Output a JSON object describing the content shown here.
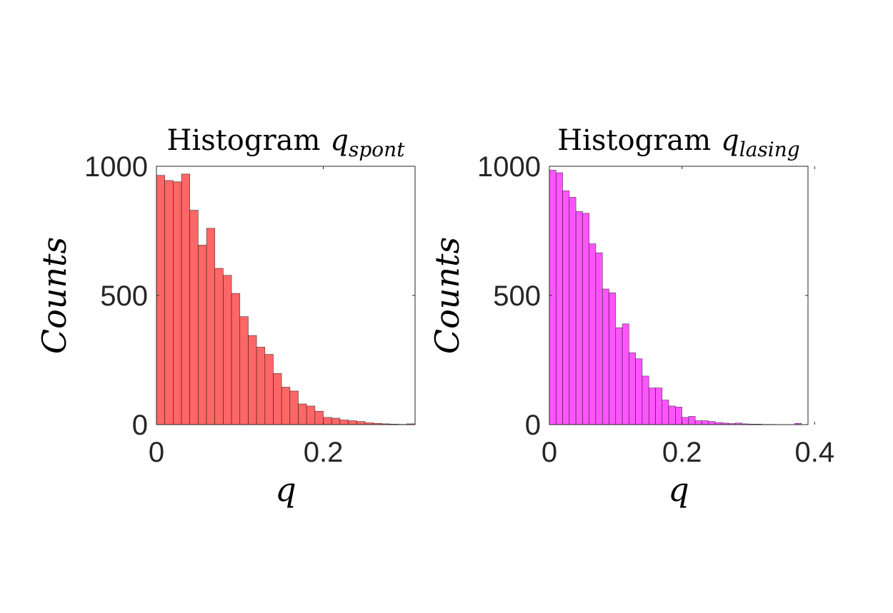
{
  "chart_data": [
    {
      "type": "bar",
      "title": "Histogram",
      "title_var": "q",
      "title_sub": "spont",
      "xlabel": "q",
      "ylabel": "Counts",
      "xlim": [
        0,
        0.31
      ],
      "ylim": [
        0,
        1000
      ],
      "xticks": [
        0,
        0.2
      ],
      "xtick_labels": [
        "0",
        "0.2"
      ],
      "yticks": [
        0,
        500,
        1000
      ],
      "ytick_labels": [
        "0",
        "500",
        "1000"
      ],
      "color": "#ff6666",
      "bin_width": 0.01,
      "bin_start": 0,
      "values": [
        965,
        945,
        940,
        970,
        830,
        695,
        760,
        605,
        578,
        508,
        418,
        345,
        300,
        272,
        198,
        145,
        130,
        80,
        72,
        52,
        28,
        25,
        18,
        15,
        12,
        7,
        5,
        3,
        2,
        1,
        3
      ]
    },
    {
      "type": "bar",
      "title": "Histogram",
      "title_var": "q",
      "title_sub": "lasing",
      "xlabel": "q",
      "ylabel": "Counts",
      "xlim": [
        0,
        0.39
      ],
      "ylim": [
        0,
        1000
      ],
      "xticks": [
        0,
        0.2,
        0.4
      ],
      "xtick_labels": [
        "0",
        "0.2",
        "0.4"
      ],
      "yticks": [
        0,
        500,
        1000
      ],
      "ytick_labels": [
        "0",
        "500",
        "1000"
      ],
      "color": "#ff55ff",
      "bin_width": 0.01,
      "bin_start": 0,
      "values": [
        985,
        975,
        905,
        880,
        825,
        818,
        700,
        665,
        525,
        510,
        375,
        390,
        278,
        255,
        188,
        142,
        142,
        95,
        72,
        68,
        28,
        32,
        15,
        15,
        12,
        8,
        6,
        4,
        6,
        3,
        2,
        2,
        1,
        1,
        0,
        0,
        0,
        5,
        0
      ]
    }
  ]
}
